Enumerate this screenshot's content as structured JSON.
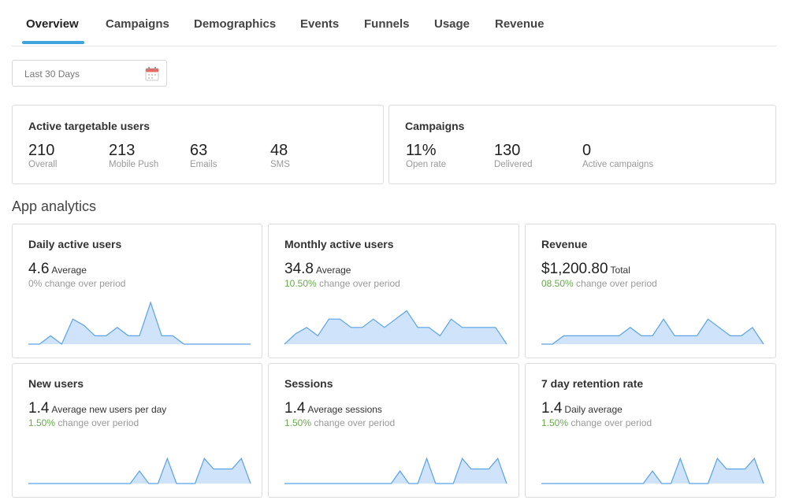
{
  "tabs": [
    "Overview",
    "Campaigns",
    "Demographics",
    "Events",
    "Funnels",
    "Usage",
    "Revenue"
  ],
  "date_range": {
    "value": "Last 30 Days",
    "icon": "calendar-icon"
  },
  "active_users": {
    "title": "Active targetable users",
    "stats": [
      {
        "value": "210",
        "label": "Overall"
      },
      {
        "value": "213",
        "label": "Mobile Push"
      },
      {
        "value": "63",
        "label": "Emails"
      },
      {
        "value": "48",
        "label": "SMS"
      }
    ]
  },
  "campaigns": {
    "title": "Campaigns",
    "stats": [
      {
        "value": "11%",
        "label": "Open rate"
      },
      {
        "value": "130",
        "label": "Delivered"
      },
      {
        "value": "0",
        "label": "Active campaigns"
      }
    ]
  },
  "section_title": "App analytics",
  "colors": {
    "accent": "#3fa4dc",
    "chart_fill": "#cfe4fb",
    "chart_line": "#5aa2e6",
    "positive": "#6aa84f"
  },
  "analytics": [
    {
      "title": "Daily active users",
      "value": "4.6",
      "unit": "Average",
      "change_pct": "0%",
      "change_text": "change over period",
      "positive": false
    },
    {
      "title": "Monthly active users",
      "value": "34.8",
      "unit": "Average",
      "change_pct": "10.50%",
      "change_text": "change over period",
      "positive": true
    },
    {
      "title": "Revenue",
      "value": "$1,200.80",
      "unit": "Total",
      "change_pct": "08.50%",
      "change_text": "change over period",
      "positive": true
    },
    {
      "title": "New users",
      "value": "1.4",
      "unit": "Average new users per day",
      "change_pct": "1.50%",
      "change_text": "change over period",
      "positive": true
    },
    {
      "title": "Sessions",
      "value": "1.4",
      "unit": "Average sessions",
      "change_pct": "1.50%",
      "change_text": "change over period",
      "positive": true
    },
    {
      "title": "7 day retention rate",
      "value": "1.4",
      "unit": "Daily average",
      "change_pct": "1.50%",
      "change_text": "change over period",
      "positive": true
    }
  ],
  "chart_data": [
    {
      "type": "area",
      "values": [
        0,
        0,
        0.2,
        0,
        0.6,
        0.45,
        0.2,
        0.2,
        0.4,
        0.2,
        0.2,
        1.0,
        0.2,
        0.2,
        0,
        0,
        0,
        0,
        0,
        0,
        0
      ]
    },
    {
      "type": "area",
      "values": [
        0,
        0.25,
        0.4,
        0.2,
        0.6,
        0.6,
        0.4,
        0.4,
        0.6,
        0.4,
        0.6,
        0.8,
        0.4,
        0.4,
        0.2,
        0.6,
        0.4,
        0.4,
        0.4,
        0.4,
        0
      ]
    },
    {
      "type": "area",
      "values": [
        0,
        0,
        0.2,
        0.2,
        0.2,
        0.2,
        0.2,
        0.2,
        0.4,
        0.2,
        0.2,
        0.6,
        0.2,
        0.2,
        0.2,
        0.6,
        0.4,
        0.2,
        0.2,
        0.4,
        0
      ]
    },
    {
      "type": "area",
      "values": [
        0,
        0,
        0,
        0,
        0,
        0,
        0,
        0,
        0,
        0,
        0,
        0,
        0.3,
        0,
        0,
        0.6,
        0,
        0,
        0,
        0.6,
        0.35,
        0.35,
        0.35,
        0.6,
        0
      ]
    },
    {
      "type": "area",
      "values": [
        0,
        0,
        0,
        0,
        0,
        0,
        0,
        0,
        0,
        0,
        0,
        0,
        0,
        0.3,
        0,
        0,
        0.6,
        0,
        0,
        0,
        0.6,
        0.35,
        0.35,
        0.35,
        0.6,
        0
      ]
    },
    {
      "type": "area",
      "values": [
        0,
        0,
        0,
        0,
        0,
        0,
        0,
        0,
        0,
        0,
        0,
        0,
        0.3,
        0,
        0,
        0.6,
        0,
        0,
        0,
        0.6,
        0.35,
        0.35,
        0.35,
        0.6,
        0
      ]
    }
  ]
}
